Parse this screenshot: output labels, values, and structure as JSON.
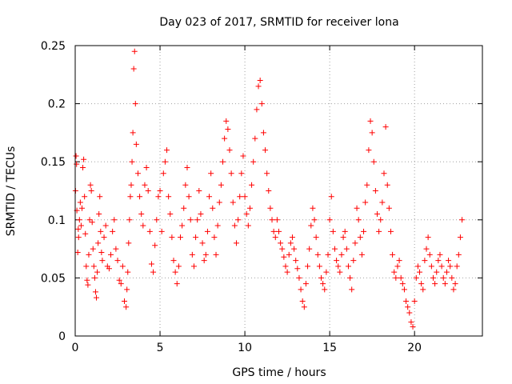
{
  "chart_data": {
    "type": "scatter",
    "title": "Day 023 of 2017, SRMTID for receiver lona",
    "xlabel": "GPS time / hours",
    "ylabel": "SRMTID / TECUs",
    "xlim": [
      0,
      24
    ],
    "ylim": [
      0,
      0.25
    ],
    "x_ticks": [
      0,
      5,
      10,
      15,
      20
    ],
    "x_tick_labels": [
      "0",
      "5",
      "10",
      "15",
      "20"
    ],
    "y_ticks": [
      0,
      0.05,
      0.1,
      0.15,
      0.2,
      0.25
    ],
    "y_tick_labels": [
      "0",
      "0.05",
      "0.1",
      "0.15",
      "0.2",
      "0.25"
    ],
    "grid": true,
    "marker": "plus",
    "color": "#ff0000",
    "series": [
      {
        "name": "SRMTID",
        "points": [
          [
            0.02,
            0.125
          ],
          [
            0.05,
            0.155
          ],
          [
            0.08,
            0.148
          ],
          [
            0.1,
            0.108
          ],
          [
            0.15,
            0.072
          ],
          [
            0.18,
            0.092
          ],
          [
            0.2,
            0.085
          ],
          [
            0.25,
            0.1
          ],
          [
            0.3,
            0.115
          ],
          [
            0.35,
            0.095
          ],
          [
            0.4,
            0.11
          ],
          [
            0.45,
            0.145
          ],
          [
            0.5,
            0.152
          ],
          [
            0.55,
            0.12
          ],
          [
            0.6,
            0.088
          ],
          [
            0.65,
            0.06
          ],
          [
            0.7,
            0.048
          ],
          [
            0.75,
            0.044
          ],
          [
            0.8,
            0.07
          ],
          [
            0.85,
            0.1
          ],
          [
            0.9,
            0.13
          ],
          [
            0.95,
            0.125
          ],
          [
            1.0,
            0.098
          ],
          [
            1.05,
            0.075
          ],
          [
            1.1,
            0.06
          ],
          [
            1.15,
            0.05
          ],
          [
            1.2,
            0.038
          ],
          [
            1.25,
            0.033
          ],
          [
            1.3,
            0.055
          ],
          [
            1.35,
            0.08
          ],
          [
            1.4,
            0.105
          ],
          [
            1.45,
            0.12
          ],
          [
            1.5,
            0.09
          ],
          [
            1.55,
            0.072
          ],
          [
            1.6,
            0.065
          ],
          [
            1.7,
            0.085
          ],
          [
            1.8,
            0.095
          ],
          [
            1.9,
            0.06
          ],
          [
            2.0,
            0.058
          ],
          [
            2.1,
            0.07
          ],
          [
            2.2,
            0.09
          ],
          [
            2.3,
            0.1
          ],
          [
            2.4,
            0.075
          ],
          [
            2.5,
            0.065
          ],
          [
            2.6,
            0.048
          ],
          [
            2.7,
            0.045
          ],
          [
            2.8,
            0.06
          ],
          [
            2.9,
            0.03
          ],
          [
            3.0,
            0.025
          ],
          [
            3.05,
            0.04
          ],
          [
            3.1,
            0.055
          ],
          [
            3.15,
            0.08
          ],
          [
            3.2,
            0.1
          ],
          [
            3.25,
            0.12
          ],
          [
            3.3,
            0.13
          ],
          [
            3.35,
            0.15
          ],
          [
            3.4,
            0.175
          ],
          [
            3.45,
            0.23
          ],
          [
            3.5,
            0.245
          ],
          [
            3.55,
            0.2
          ],
          [
            3.6,
            0.165
          ],
          [
            3.7,
            0.14
          ],
          [
            3.8,
            0.12
          ],
          [
            3.9,
            0.105
          ],
          [
            4.0,
            0.095
          ],
          [
            4.1,
            0.13
          ],
          [
            4.2,
            0.145
          ],
          [
            4.3,
            0.125
          ],
          [
            4.4,
            0.09
          ],
          [
            4.5,
            0.062
          ],
          [
            4.6,
            0.055
          ],
          [
            4.7,
            0.078
          ],
          [
            4.8,
            0.1
          ],
          [
            4.9,
            0.12
          ],
          [
            5.0,
            0.125
          ],
          [
            5.1,
            0.09
          ],
          [
            5.2,
            0.14
          ],
          [
            5.3,
            0.15
          ],
          [
            5.4,
            0.16
          ],
          [
            5.5,
            0.12
          ],
          [
            5.6,
            0.105
          ],
          [
            5.7,
            0.085
          ],
          [
            5.8,
            0.065
          ],
          [
            5.9,
            0.055
          ],
          [
            6.0,
            0.045
          ],
          [
            6.1,
            0.06
          ],
          [
            6.2,
            0.085
          ],
          [
            6.3,
            0.095
          ],
          [
            6.4,
            0.11
          ],
          [
            6.5,
            0.13
          ],
          [
            6.6,
            0.145
          ],
          [
            6.7,
            0.12
          ],
          [
            6.8,
            0.1
          ],
          [
            6.9,
            0.07
          ],
          [
            7.0,
            0.06
          ],
          [
            7.1,
            0.085
          ],
          [
            7.2,
            0.1
          ],
          [
            7.3,
            0.125
          ],
          [
            7.4,
            0.105
          ],
          [
            7.5,
            0.08
          ],
          [
            7.6,
            0.065
          ],
          [
            7.7,
            0.07
          ],
          [
            7.8,
            0.09
          ],
          [
            7.9,
            0.12
          ],
          [
            8.0,
            0.14
          ],
          [
            8.1,
            0.11
          ],
          [
            8.2,
            0.085
          ],
          [
            8.3,
            0.07
          ],
          [
            8.4,
            0.095
          ],
          [
            8.5,
            0.115
          ],
          [
            8.6,
            0.13
          ],
          [
            8.7,
            0.15
          ],
          [
            8.8,
            0.17
          ],
          [
            8.9,
            0.185
          ],
          [
            9.0,
            0.178
          ],
          [
            9.1,
            0.16
          ],
          [
            9.2,
            0.14
          ],
          [
            9.3,
            0.115
          ],
          [
            9.4,
            0.095
          ],
          [
            9.5,
            0.08
          ],
          [
            9.6,
            0.1
          ],
          [
            9.7,
            0.12
          ],
          [
            9.8,
            0.14
          ],
          [
            9.9,
            0.155
          ],
          [
            10.0,
            0.12
          ],
          [
            10.1,
            0.105
          ],
          [
            10.2,
            0.095
          ],
          [
            10.3,
            0.11
          ],
          [
            10.4,
            0.13
          ],
          [
            10.5,
            0.15
          ],
          [
            10.6,
            0.17
          ],
          [
            10.7,
            0.195
          ],
          [
            10.8,
            0.215
          ],
          [
            10.9,
            0.22
          ],
          [
            11.0,
            0.2
          ],
          [
            11.1,
            0.175
          ],
          [
            11.2,
            0.16
          ],
          [
            11.3,
            0.14
          ],
          [
            11.4,
            0.125
          ],
          [
            11.5,
            0.11
          ],
          [
            11.6,
            0.1
          ],
          [
            11.7,
            0.09
          ],
          [
            11.8,
            0.085
          ],
          [
            11.9,
            0.1
          ],
          [
            12.0,
            0.09
          ],
          [
            12.1,
            0.08
          ],
          [
            12.2,
            0.075
          ],
          [
            12.3,
            0.068
          ],
          [
            12.4,
            0.06
          ],
          [
            12.5,
            0.055
          ],
          [
            12.6,
            0.07
          ],
          [
            12.7,
            0.08
          ],
          [
            12.8,
            0.085
          ],
          [
            12.9,
            0.075
          ],
          [
            13.0,
            0.065
          ],
          [
            13.1,
            0.058
          ],
          [
            13.2,
            0.05
          ],
          [
            13.3,
            0.04
          ],
          [
            13.4,
            0.03
          ],
          [
            13.5,
            0.025
          ],
          [
            13.6,
            0.045
          ],
          [
            13.7,
            0.06
          ],
          [
            13.8,
            0.075
          ],
          [
            13.9,
            0.095
          ],
          [
            14.0,
            0.11
          ],
          [
            14.1,
            0.1
          ],
          [
            14.2,
            0.085
          ],
          [
            14.3,
            0.07
          ],
          [
            14.4,
            0.06
          ],
          [
            14.5,
            0.05
          ],
          [
            14.6,
            0.045
          ],
          [
            14.7,
            0.04
          ],
          [
            14.8,
            0.055
          ],
          [
            14.9,
            0.07
          ],
          [
            15.0,
            0.1
          ],
          [
            15.1,
            0.12
          ],
          [
            15.2,
            0.09
          ],
          [
            15.3,
            0.075
          ],
          [
            15.4,
            0.065
          ],
          [
            15.5,
            0.06
          ],
          [
            15.6,
            0.055
          ],
          [
            15.7,
            0.07
          ],
          [
            15.8,
            0.085
          ],
          [
            15.9,
            0.09
          ],
          [
            16.0,
            0.075
          ],
          [
            16.1,
            0.06
          ],
          [
            16.2,
            0.05
          ],
          [
            16.3,
            0.04
          ],
          [
            16.4,
            0.065
          ],
          [
            16.5,
            0.08
          ],
          [
            16.6,
            0.11
          ],
          [
            16.7,
            0.1
          ],
          [
            16.8,
            0.085
          ],
          [
            16.9,
            0.07
          ],
          [
            17.0,
            0.09
          ],
          [
            17.1,
            0.115
          ],
          [
            17.2,
            0.13
          ],
          [
            17.3,
            0.16
          ],
          [
            17.4,
            0.185
          ],
          [
            17.5,
            0.175
          ],
          [
            17.6,
            0.15
          ],
          [
            17.7,
            0.125
          ],
          [
            17.8,
            0.105
          ],
          [
            17.9,
            0.09
          ],
          [
            18.0,
            0.1
          ],
          [
            18.1,
            0.115
          ],
          [
            18.2,
            0.14
          ],
          [
            18.3,
            0.18
          ],
          [
            18.4,
            0.13
          ],
          [
            18.5,
            0.11
          ],
          [
            18.6,
            0.09
          ],
          [
            18.7,
            0.07
          ],
          [
            18.8,
            0.055
          ],
          [
            18.9,
            0.05
          ],
          [
            19.0,
            0.06
          ],
          [
            19.1,
            0.065
          ],
          [
            19.2,
            0.05
          ],
          [
            19.3,
            0.045
          ],
          [
            19.4,
            0.04
          ],
          [
            19.5,
            0.03
          ],
          [
            19.6,
            0.025
          ],
          [
            19.7,
            0.02
          ],
          [
            19.8,
            0.012
          ],
          [
            19.9,
            0.008
          ],
          [
            20.0,
            0.03
          ],
          [
            20.1,
            0.05
          ],
          [
            20.2,
            0.06
          ],
          [
            20.3,
            0.055
          ],
          [
            20.4,
            0.045
          ],
          [
            20.5,
            0.04
          ],
          [
            20.6,
            0.065
          ],
          [
            20.7,
            0.075
          ],
          [
            20.8,
            0.085
          ],
          [
            20.9,
            0.07
          ],
          [
            21.0,
            0.06
          ],
          [
            21.1,
            0.05
          ],
          [
            21.2,
            0.045
          ],
          [
            21.3,
            0.055
          ],
          [
            21.4,
            0.065
          ],
          [
            21.5,
            0.07
          ],
          [
            21.6,
            0.06
          ],
          [
            21.7,
            0.05
          ],
          [
            21.8,
            0.045
          ],
          [
            21.9,
            0.055
          ],
          [
            22.0,
            0.065
          ],
          [
            22.1,
            0.06
          ],
          [
            22.2,
            0.05
          ],
          [
            22.3,
            0.04
          ],
          [
            22.4,
            0.045
          ],
          [
            22.5,
            0.06
          ],
          [
            22.6,
            0.07
          ],
          [
            22.7,
            0.085
          ],
          [
            22.8,
            0.1
          ]
        ]
      }
    ]
  }
}
